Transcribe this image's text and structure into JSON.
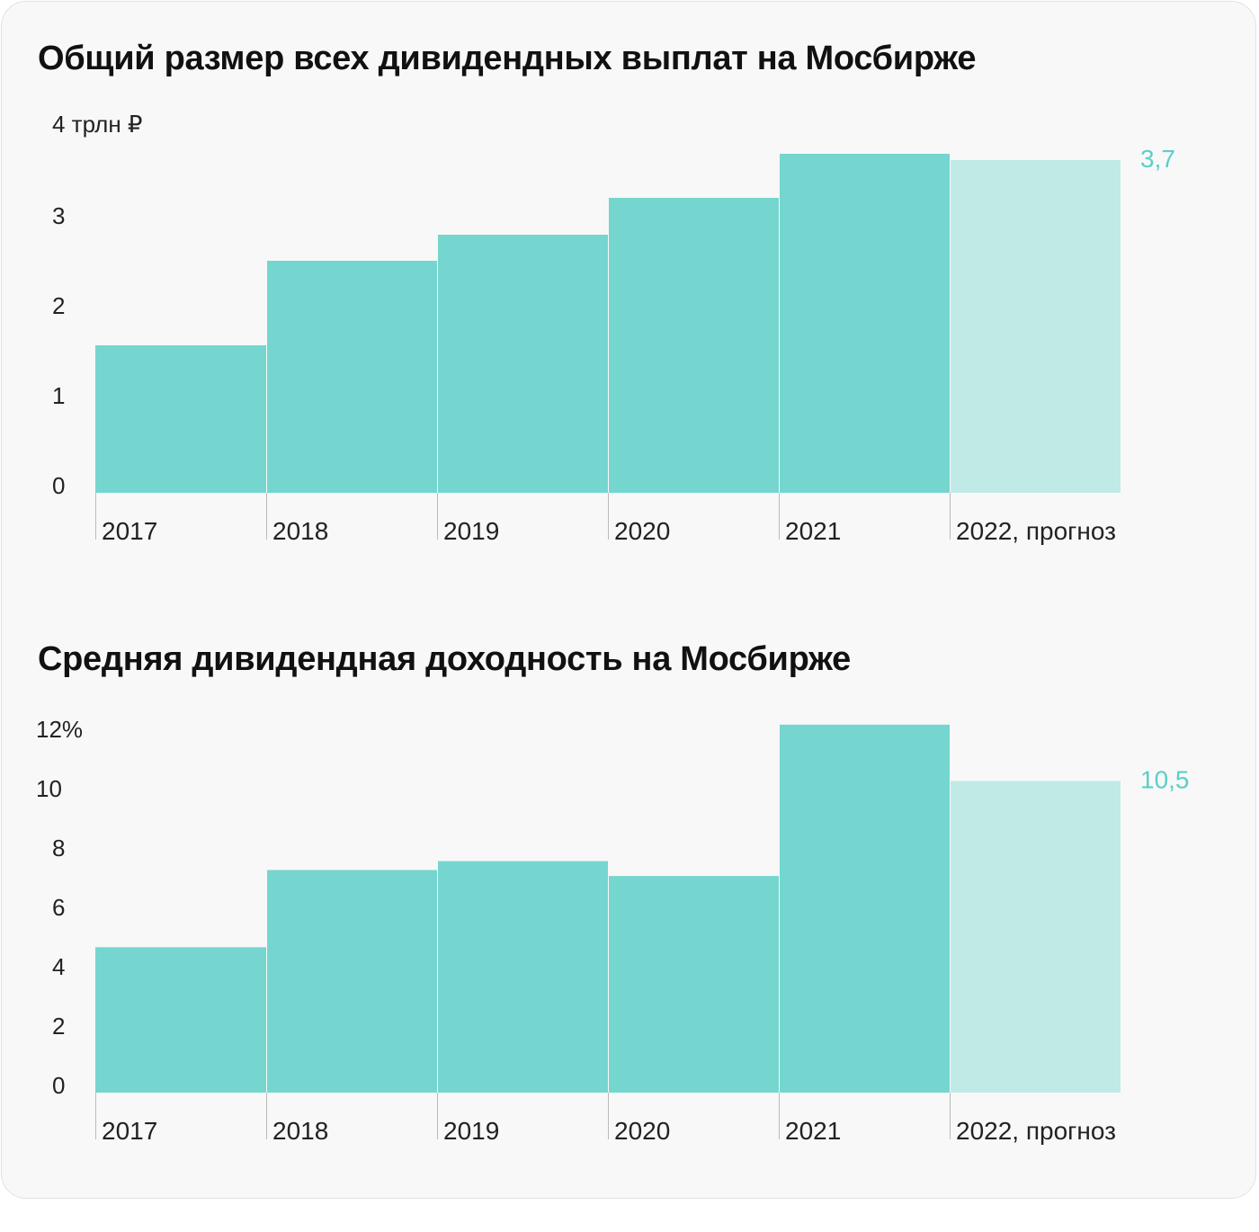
{
  "chart_data": [
    {
      "type": "bar",
      "title": "Общий размер всех дивидендных выплат на Мосбирже",
      "categories": [
        "2017",
        "2018",
        "2019",
        "2020",
        "2021",
        "2022, прогноз"
      ],
      "values": [
        1.64,
        2.58,
        2.87,
        3.28,
        3.77,
        3.7
      ],
      "forecast": [
        false,
        false,
        false,
        false,
        false,
        true
      ],
      "ytick_labels": [
        "0",
        "1",
        "2",
        "3",
        "4 трлн ₽"
      ],
      "yticks": [
        0,
        1,
        2,
        3,
        4
      ],
      "ylim": [
        0,
        4
      ],
      "data_label": {
        "index": 5,
        "text": "3,7"
      },
      "grid": false
    },
    {
      "type": "bar",
      "title": "Средняя дивидендная доходность на Мосбирже",
      "categories": [
        "2017",
        "2018",
        "2019",
        "2020",
        "2021",
        "2022, прогноз"
      ],
      "values": [
        4.9,
        7.5,
        7.8,
        7.3,
        12.4,
        10.5
      ],
      "forecast": [
        false,
        false,
        false,
        false,
        false,
        true
      ],
      "ytick_labels": [
        "0",
        "2",
        "4",
        "6",
        "8",
        "10",
        "12%"
      ],
      "yticks": [
        0,
        2,
        4,
        6,
        8,
        10,
        12
      ],
      "ylim": [
        0,
        12
      ],
      "data_label": {
        "index": 5,
        "text": "10,5"
      },
      "grid": false
    }
  ],
  "colors": {
    "bar": "#74d6cf",
    "forecast_bar": "#bfeae6",
    "data_label": "#5ccfc6",
    "background": "#f8f8f8"
  }
}
